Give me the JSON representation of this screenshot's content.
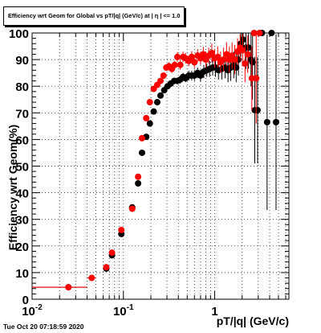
{
  "chart_data": {
    "type": "scatter",
    "title": "Efficiency wrt Geom for Global vs pT/|q| (GeV/c) at | η | <= 1.0",
    "xlabel": "pT/|q| (GeV/c)",
    "ylabel": "Efficiency wrt Geom(%)",
    "x_scale": "log",
    "xlim": [
      0.01,
      6.5
    ],
    "ylim": [
      0,
      100
    ],
    "grid": true,
    "y_ticks": [
      0,
      10,
      20,
      30,
      40,
      50,
      60,
      70,
      80,
      90,
      100
    ],
    "x_tick_labels": [
      {
        "value": 0.01,
        "label": "10",
        "exp": "-2"
      },
      {
        "value": 0.1,
        "label": "10",
        "exp": "-1"
      },
      {
        "value": 1,
        "label": "1",
        "exp": ""
      }
    ],
    "series": [
      {
        "color": "#000000",
        "points": [
          [
            0.025,
            4.5,
            0.015,
            0.5
          ],
          [
            0.065,
            11.5,
            0.005,
            1
          ],
          [
            0.075,
            16.5,
            0.005,
            1
          ],
          [
            0.095,
            24.5,
            0.005,
            1
          ],
          [
            0.125,
            34.5,
            0.01,
            1
          ],
          [
            0.145,
            43.5,
            0.005,
            1
          ],
          [
            0.16,
            55.0,
            0.005,
            1
          ],
          [
            0.178,
            61.0,
            0.006,
            1
          ],
          [
            0.195,
            66.0,
            0.006,
            1
          ],
          [
            0.215,
            70.5,
            0.006,
            1
          ],
          [
            0.235,
            74.0,
            0.007,
            1
          ],
          [
            0.255,
            76.5,
            0.007,
            1
          ],
          [
            0.28,
            78.5,
            0.008,
            1
          ],
          [
            0.305,
            80.0,
            0.008,
            1
          ],
          [
            0.33,
            81.0,
            0.009,
            1.2
          ],
          [
            0.36,
            82.0,
            0.009,
            1.2
          ],
          [
            0.39,
            82.0,
            0.01,
            1.2
          ],
          [
            0.42,
            82.5,
            0.01,
            1.5
          ],
          [
            0.45,
            83.5,
            0.011,
            1.5
          ],
          [
            0.48,
            83.0,
            0.011,
            1.5
          ],
          [
            0.52,
            84.0,
            0.012,
            1.8
          ],
          [
            0.56,
            84.0,
            0.012,
            1.8
          ],
          [
            0.6,
            84.0,
            0.013,
            2
          ],
          [
            0.65,
            85.0,
            0.014,
            2
          ],
          [
            0.7,
            84.0,
            0.015,
            2.2
          ],
          [
            0.76,
            85.5,
            0.016,
            2.5
          ],
          [
            0.82,
            86.0,
            0.017,
            2.5
          ],
          [
            0.88,
            86.5,
            0.018,
            3
          ],
          [
            0.95,
            87.0,
            0.019,
            3
          ],
          [
            1.02,
            87.0,
            0.02,
            3.5
          ],
          [
            1.1,
            86.0,
            0.022,
            3.5
          ],
          [
            1.2,
            86.5,
            0.024,
            4
          ],
          [
            1.3,
            87.0,
            0.026,
            4
          ],
          [
            1.4,
            86.0,
            0.028,
            4.5
          ],
          [
            1.5,
            87.0,
            0.03,
            5
          ],
          [
            1.62,
            88.0,
            0.032,
            5
          ],
          [
            1.72,
            87.0,
            0.034,
            5.5
          ],
          [
            1.82,
            90.0,
            0.036,
            6
          ],
          [
            1.93,
            96.0,
            0.038,
            5
          ],
          [
            2.05,
            97.5,
            0.04,
            3
          ],
          [
            2.2,
            94.5,
            0.044,
            8
          ],
          [
            2.35,
            94.5,
            0.047,
            8
          ],
          [
            2.5,
            90.0,
            0.05,
            10
          ],
          [
            2.6,
            89.0,
            0.05,
            14
          ],
          [
            2.75,
            71.0,
            0.055,
            20
          ],
          [
            2.95,
            71.0,
            0.06,
            20
          ],
          [
            3.3,
            100.0,
            0.07,
            0.5
          ],
          [
            3.75,
            66.5,
            0.08,
            33
          ],
          [
            4.2,
            100.0,
            0.1,
            0.5
          ],
          [
            4.7,
            66.5,
            0.1,
            33
          ]
        ]
      },
      {
        "color": "#ff0000",
        "points": [
          [
            0.025,
            4.5,
            0.015,
            0.5
          ],
          [
            0.045,
            8.0,
            0.005,
            1
          ],
          [
            0.065,
            12.0,
            0.005,
            1
          ],
          [
            0.075,
            17.5,
            0.005,
            1
          ],
          [
            0.095,
            26.0,
            0.005,
            1
          ],
          [
            0.125,
            34.0,
            0.01,
            1
          ],
          [
            0.145,
            46.0,
            0.005,
            1
          ],
          [
            0.16,
            60.5,
            0.005,
            1
          ],
          [
            0.178,
            68.0,
            0.006,
            1
          ],
          [
            0.195,
            74.0,
            0.006,
            1
          ],
          [
            0.215,
            79.0,
            0.006,
            1
          ],
          [
            0.235,
            80.5,
            0.007,
            1
          ],
          [
            0.255,
            82.0,
            0.007,
            1
          ],
          [
            0.275,
            84.0,
            0.008,
            1.2
          ],
          [
            0.295,
            87.0,
            0.008,
            1.2
          ],
          [
            0.315,
            87.5,
            0.009,
            1.5
          ],
          [
            0.34,
            86.5,
            0.009,
            1.5
          ],
          [
            0.365,
            88.0,
            0.01,
            1.5
          ],
          [
            0.39,
            91.0,
            0.01,
            1.8
          ],
          [
            0.42,
            88.0,
            0.01,
            1.8
          ],
          [
            0.45,
            91.0,
            0.011,
            2
          ],
          [
            0.48,
            90.5,
            0.011,
            2
          ],
          [
            0.52,
            89.5,
            0.012,
            2
          ],
          [
            0.56,
            91.0,
            0.012,
            2.2
          ],
          [
            0.6,
            89.0,
            0.013,
            2.2
          ],
          [
            0.65,
            91.5,
            0.014,
            2.5
          ],
          [
            0.7,
            90.5,
            0.015,
            2.5
          ],
          [
            0.75,
            92.0,
            0.016,
            2.8
          ],
          [
            0.8,
            90.0,
            0.017,
            3
          ],
          [
            0.86,
            91.5,
            0.018,
            3
          ],
          [
            0.93,
            92.5,
            0.019,
            3.5
          ],
          [
            1.0,
            90.5,
            0.02,
            3.5
          ],
          [
            1.08,
            91.0,
            0.022,
            4
          ],
          [
            1.16,
            89.0,
            0.024,
            4
          ],
          [
            1.25,
            90.0,
            0.025,
            4.5
          ],
          [
            1.35,
            92.0,
            0.027,
            4.5
          ],
          [
            1.45,
            90.0,
            0.029,
            5
          ],
          [
            1.55,
            91.5,
            0.031,
            5
          ],
          [
            1.66,
            90.0,
            0.033,
            5.5
          ],
          [
            1.78,
            93.0,
            0.035,
            5
          ],
          [
            1.9,
            94.5,
            0.038,
            5
          ],
          [
            2.02,
            93.5,
            0.04,
            6
          ],
          [
            2.15,
            88.5,
            0.043,
            7
          ],
          [
            2.3,
            92.0,
            0.046,
            7
          ],
          [
            2.55,
            83.0,
            0.05,
            12
          ],
          [
            2.7,
            100.0,
            0.055,
            0.5
          ],
          [
            2.85,
            83.0,
            0.055,
            17
          ],
          [
            3.1,
            100.0,
            0.06,
            0.5
          ]
        ]
      }
    ]
  },
  "footer": {
    "timestamp": "Tue Oct 20 07:18:59 2020"
  }
}
